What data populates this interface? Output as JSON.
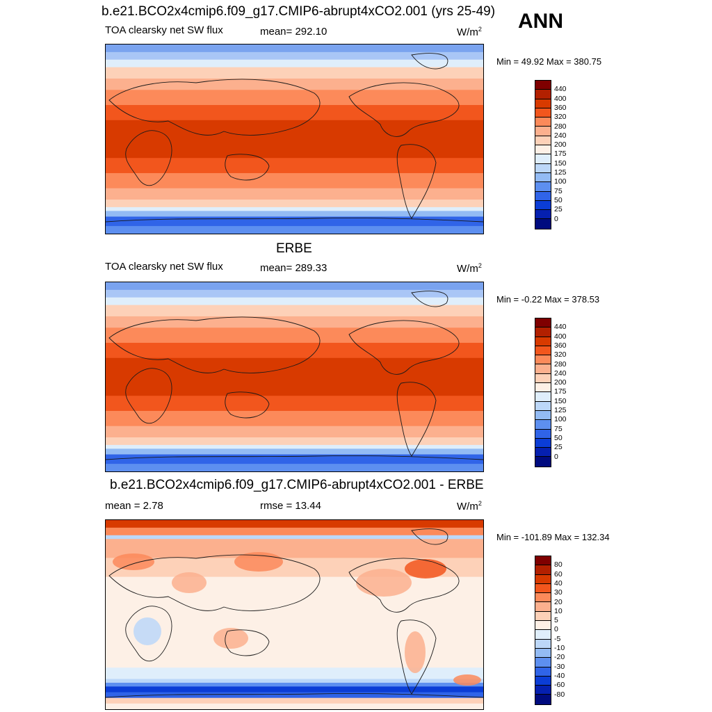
{
  "header": {
    "title": "b.e21.BCO2x4cmip6.f09_g17.CMIP6-abrupt4xCO2.001 (yrs 25-49)",
    "season": "ANN"
  },
  "panels": [
    {
      "title": "",
      "left_label": "TOA clearsky net SW flux",
      "center_label": "mean= 292.10",
      "units_base": "W/m",
      "units_exp": "2",
      "minmax": "Min =  49.92 Max = 380.75"
    },
    {
      "title": "ERBE",
      "left_label": "TOA clearsky net SW flux",
      "center_label": "mean= 289.33",
      "units_base": "W/m",
      "units_exp": "2",
      "minmax": "Min =  -0.22 Max = 378.53"
    },
    {
      "title": "b.e21.BCO2x4cmip6.f09_g17.CMIP6-abrupt4xCO2.001 - ERBE",
      "left_label": "mean =   2.78",
      "center_label": "rmse =  13.44",
      "units_base": "W/m",
      "units_exp": "2",
      "minmax": "Min = -101.89 Max = 132.34"
    }
  ],
  "colorbars": {
    "field": {
      "labels": [
        "440",
        "400",
        "360",
        "320",
        "280",
        "240",
        "200",
        "175",
        "150",
        "125",
        "100",
        "75",
        "50",
        "25",
        "0"
      ],
      "colors": [
        "#7f0000",
        "#b22000",
        "#d83a00",
        "#f2561d",
        "#fc8a5a",
        "#fcb08e",
        "#fdd1b8",
        "#fdf0e6",
        "#dfeefb",
        "#bcd7f8",
        "#93bbf4",
        "#5d8ff0",
        "#3064e8",
        "#0b3dd6",
        "#0520b0",
        "#000b7f"
      ]
    },
    "diff": {
      "labels": [
        "80",
        "60",
        "40",
        "30",
        "20",
        "10",
        "5",
        "0",
        "-5",
        "-10",
        "-20",
        "-30",
        "-40",
        "-60",
        "-80"
      ],
      "colors": [
        "#7f0000",
        "#b22000",
        "#d83a00",
        "#f2561d",
        "#fc8a5a",
        "#fcb08e",
        "#fdd1b8",
        "#fdf0e6",
        "#dfeefb",
        "#bcd7f8",
        "#93bbf4",
        "#5d8ff0",
        "#3064e8",
        "#0b3dd6",
        "#0520b0",
        "#000b7f"
      ]
    }
  }
}
